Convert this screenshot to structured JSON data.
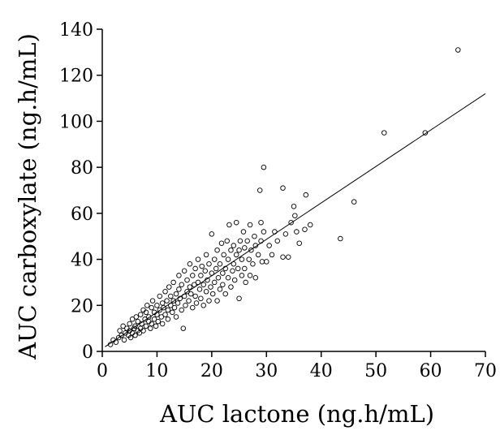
{
  "chart_data": {
    "type": "scatter",
    "title": "",
    "xlabel": "AUC lactone (ng.h/mL)",
    "ylabel": "AUC carboxylate (ng.h/mL)",
    "xlim": [
      0,
      70
    ],
    "ylim": [
      0,
      140
    ],
    "xticks": [
      0,
      10,
      20,
      30,
      40,
      50,
      60,
      70
    ],
    "yticks": [
      0,
      20,
      40,
      60,
      80,
      100,
      120,
      140
    ],
    "grid": false,
    "legend": "none",
    "fit_line": {
      "x": [
        0.5,
        70
      ],
      "y": [
        2,
        112
      ]
    },
    "points": [
      [
        1.5,
        3
      ],
      [
        2,
        5
      ],
      [
        2.5,
        4
      ],
      [
        3,
        6
      ],
      [
        3.2,
        9
      ],
      [
        3.5,
        7
      ],
      [
        3.8,
        11
      ],
      [
        4,
        5
      ],
      [
        4.2,
        8
      ],
      [
        4.5,
        10
      ],
      [
        4.8,
        7
      ],
      [
        5,
        9
      ],
      [
        5,
        12
      ],
      [
        5.2,
        6
      ],
      [
        5.5,
        8
      ],
      [
        5.5,
        14
      ],
      [
        5.8,
        10
      ],
      [
        6,
        7
      ],
      [
        6,
        11
      ],
      [
        6.2,
        15
      ],
      [
        6.5,
        9
      ],
      [
        6.5,
        13
      ],
      [
        6.8,
        8
      ],
      [
        7,
        10
      ],
      [
        7,
        16
      ],
      [
        7.2,
        12
      ],
      [
        7.5,
        9
      ],
      [
        7.5,
        18
      ],
      [
        7.8,
        14
      ],
      [
        8,
        11
      ],
      [
        8,
        17
      ],
      [
        8.2,
        20
      ],
      [
        8.5,
        13
      ],
      [
        8.5,
        15
      ],
      [
        8.8,
        10
      ],
      [
        9,
        12
      ],
      [
        9,
        19
      ],
      [
        9.2,
        22
      ],
      [
        9.5,
        14
      ],
      [
        9.5,
        17
      ],
      [
        9.8,
        11
      ],
      [
        10,
        16
      ],
      [
        10,
        20
      ],
      [
        10.2,
        13
      ],
      [
        10.5,
        24
      ],
      [
        10.5,
        18
      ],
      [
        10.8,
        15
      ],
      [
        11,
        21
      ],
      [
        11,
        12
      ],
      [
        11.2,
        19
      ],
      [
        11.5,
        26
      ],
      [
        11.5,
        16
      ],
      [
        11.8,
        22
      ],
      [
        12,
        18
      ],
      [
        12,
        14
      ],
      [
        12.2,
        28
      ],
      [
        12.5,
        20
      ],
      [
        12.5,
        24
      ],
      [
        12.8,
        17
      ],
      [
        13,
        22
      ],
      [
        13,
        30
      ],
      [
        13.2,
        19
      ],
      [
        13.5,
        25
      ],
      [
        13.5,
        15
      ],
      [
        13.8,
        21
      ],
      [
        14,
        27
      ],
      [
        14,
        33
      ],
      [
        14.2,
        23
      ],
      [
        14.5,
        18
      ],
      [
        14.5,
        29
      ],
      [
        14.8,
        10
      ],
      [
        15,
        24
      ],
      [
        15,
        35
      ],
      [
        15.2,
        20
      ],
      [
        15.5,
        31
      ],
      [
        15.5,
        26
      ],
      [
        15.8,
        22
      ],
      [
        16,
        28
      ],
      [
        16,
        38
      ],
      [
        16.2,
        25
      ],
      [
        16.5,
        19
      ],
      [
        16.5,
        33
      ],
      [
        16.8,
        29
      ],
      [
        17,
        24
      ],
      [
        17,
        36
      ],
      [
        17.2,
        21
      ],
      [
        17.5,
        30
      ],
      [
        17.5,
        40
      ],
      [
        17.8,
        27
      ],
      [
        18,
        33
      ],
      [
        18,
        23
      ],
      [
        18.2,
        37
      ],
      [
        18.5,
        29
      ],
      [
        18.5,
        20
      ],
      [
        18.8,
        35
      ],
      [
        19,
        26
      ],
      [
        19,
        42
      ],
      [
        19.2,
        31
      ],
      [
        19.5,
        22
      ],
      [
        19.5,
        38
      ],
      [
        19.8,
        28
      ],
      [
        20,
        34
      ],
      [
        20,
        51
      ],
      [
        20.2,
        25
      ],
      [
        20.5,
        40
      ],
      [
        20.5,
        30
      ],
      [
        20.8,
        36
      ],
      [
        21,
        22
      ],
      [
        21,
        44
      ],
      [
        21.2,
        32
      ],
      [
        21.5,
        27
      ],
      [
        21.5,
        38
      ],
      [
        21.8,
        47
      ],
      [
        22,
        34
      ],
      [
        22,
        29
      ],
      [
        22.2,
        42
      ],
      [
        22.5,
        25
      ],
      [
        22.5,
        36
      ],
      [
        22.8,
        48
      ],
      [
        23,
        32
      ],
      [
        23,
        40
      ],
      [
        23.2,
        55
      ],
      [
        23.5,
        28
      ],
      [
        23.5,
        44
      ],
      [
        23.8,
        35
      ],
      [
        24,
        38
      ],
      [
        24,
        46
      ],
      [
        24.2,
        31
      ],
      [
        24.5,
        42
      ],
      [
        24.5,
        56
      ],
      [
        24.8,
        36
      ],
      [
        25,
        23
      ],
      [
        25,
        44
      ],
      [
        25.2,
        48
      ],
      [
        25.5,
        33
      ],
      [
        25.5,
        40
      ],
      [
        25.8,
        52
      ],
      [
        26,
        36
      ],
      [
        26,
        45
      ],
      [
        26.2,
        30
      ],
      [
        26.5,
        48
      ],
      [
        26.8,
        40
      ],
      [
        27,
        55
      ],
      [
        27,
        33
      ],
      [
        27.2,
        44
      ],
      [
        27.5,
        38
      ],
      [
        27.8,
        50
      ],
      [
        28,
        46
      ],
      [
        28,
        32
      ],
      [
        28.5,
        42
      ],
      [
        28.8,
        70
      ],
      [
        29,
        56
      ],
      [
        29,
        48
      ],
      [
        29.2,
        39
      ],
      [
        29.5,
        80
      ],
      [
        29.5,
        52
      ],
      [
        30,
        39
      ],
      [
        30.5,
        46
      ],
      [
        31,
        42
      ],
      [
        31.5,
        52
      ],
      [
        32,
        48
      ],
      [
        33,
        71
      ],
      [
        33,
        41
      ],
      [
        33.5,
        51
      ],
      [
        34,
        41
      ],
      [
        34.5,
        56
      ],
      [
        35,
        63
      ],
      [
        35.2,
        59
      ],
      [
        35.5,
        52
      ],
      [
        36,
        47
      ],
      [
        37,
        53
      ],
      [
        37.2,
        68
      ],
      [
        38,
        55
      ],
      [
        43.5,
        49
      ],
      [
        46,
        65
      ],
      [
        51.5,
        95
      ],
      [
        59,
        95
      ],
      [
        65,
        131
      ]
    ]
  }
}
